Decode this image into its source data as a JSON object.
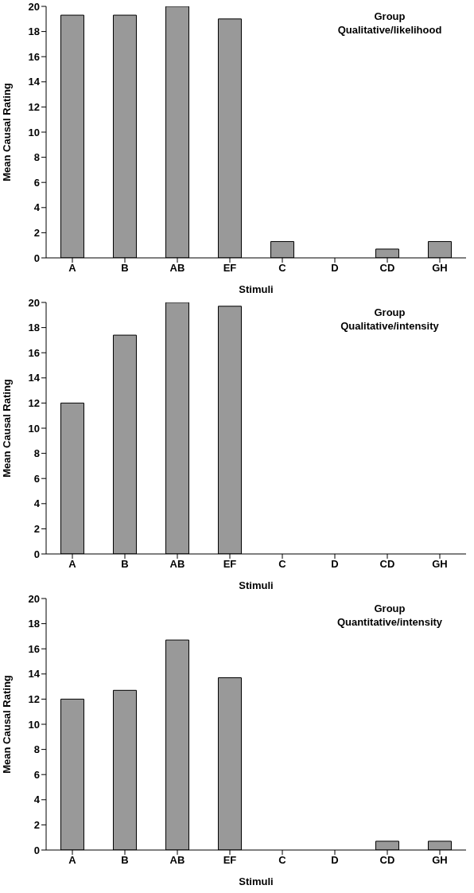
{
  "chart_data": [
    {
      "type": "bar",
      "title": "Group",
      "subtitle": "Qualitative/likelihood",
      "xlabel": "Stimuli",
      "ylabel": "Mean Causal Rating",
      "categories": [
        "A",
        "B",
        "AB",
        "EF",
        "C",
        "D",
        "CD",
        "GH"
      ],
      "color": "#999999",
      "values": [
        19.3,
        19.3,
        20,
        19,
        1.3,
        0,
        0.7,
        1.3
      ],
      "ylim": [
        0,
        20
      ],
      "yticks": [
        0,
        2,
        4,
        6,
        8,
        10,
        12,
        14,
        16,
        18,
        20
      ],
      "grid": false,
      "legend": false
    },
    {
      "type": "bar",
      "title": "Group",
      "subtitle": "Qualitative/intensity",
      "xlabel": "Stimuli",
      "ylabel": "Mean Causal Rating",
      "categories": [
        "A",
        "B",
        "AB",
        "EF",
        "C",
        "D",
        "CD",
        "GH"
      ],
      "color": "#999999",
      "values": [
        12,
        17.4,
        20,
        19.7,
        0,
        0,
        0,
        0
      ],
      "ylim": [
        0,
        20
      ],
      "yticks": [
        0,
        2,
        4,
        6,
        8,
        10,
        12,
        14,
        16,
        18,
        20
      ],
      "grid": false,
      "legend": false
    },
    {
      "type": "bar",
      "title": "Group",
      "subtitle": "Quantitative/intensity",
      "xlabel": "Stimuli",
      "ylabel": "Mean Causal Rating",
      "categories": [
        "A",
        "B",
        "AB",
        "EF",
        "C",
        "D",
        "CD",
        "GH"
      ],
      "color": "#999999",
      "values": [
        12,
        12.7,
        16.7,
        13.7,
        0,
        0,
        0.7,
        0.7
      ],
      "ylim": [
        0,
        20
      ],
      "yticks": [
        0,
        2,
        4,
        6,
        8,
        10,
        12,
        14,
        16,
        18,
        20
      ],
      "grid": false,
      "legend": false
    }
  ]
}
